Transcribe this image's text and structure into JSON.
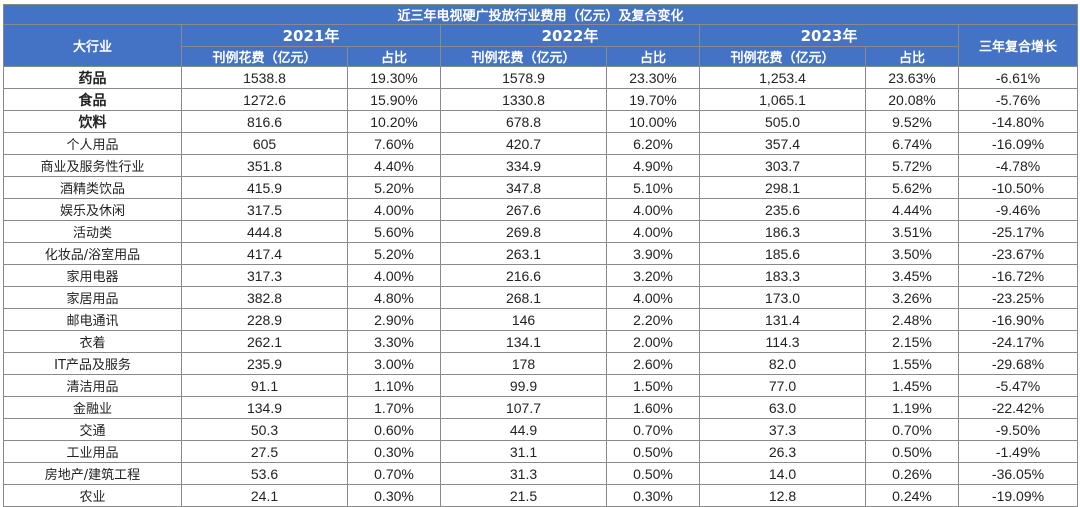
{
  "chart_data": {
    "type": "table",
    "title": "近三年电视硬广投放行业费用（亿元）及复合变化",
    "category_header": "大行业",
    "years": [
      "2021年",
      "2022年",
      "2023年"
    ],
    "spend_header": "刊例花费（亿元）",
    "share_header": "占比",
    "cagr_header": "三年复合增长",
    "rows": [
      {
        "industry": "药品",
        "y2021": "1538.8",
        "s2021": "19.30%",
        "y2022": "1578.9",
        "s2022": "23.30%",
        "y2023": "1,253.4",
        "s2023": "23.63%",
        "cagr": "-6.61%",
        "bold": true
      },
      {
        "industry": "食品",
        "y2021": "1272.6",
        "s2021": "15.90%",
        "y2022": "1330.8",
        "s2022": "19.70%",
        "y2023": "1,065.1",
        "s2023": "20.08%",
        "cagr": "-5.76%",
        "bold": true
      },
      {
        "industry": "饮料",
        "y2021": "816.6",
        "s2021": "10.20%",
        "y2022": "678.8",
        "s2022": "10.00%",
        "y2023": "505.0",
        "s2023": "9.52%",
        "cagr": "-14.80%",
        "bold": true
      },
      {
        "industry": "个人用品",
        "y2021": "605",
        "s2021": "7.60%",
        "y2022": "420.7",
        "s2022": "6.20%",
        "y2023": "357.4",
        "s2023": "6.74%",
        "cagr": "-16.09%"
      },
      {
        "industry": "商业及服务性行业",
        "y2021": "351.8",
        "s2021": "4.40%",
        "y2022": "334.9",
        "s2022": "4.90%",
        "y2023": "303.7",
        "s2023": "5.72%",
        "cagr": "-4.78%"
      },
      {
        "industry": "酒精类饮品",
        "y2021": "415.9",
        "s2021": "5.20%",
        "y2022": "347.8",
        "s2022": "5.10%",
        "y2023": "298.1",
        "s2023": "5.62%",
        "cagr": "-10.50%"
      },
      {
        "industry": "娱乐及休闲",
        "y2021": "317.5",
        "s2021": "4.00%",
        "y2022": "267.6",
        "s2022": "4.00%",
        "y2023": "235.6",
        "s2023": "4.44%",
        "cagr": "-9.46%"
      },
      {
        "industry": "活动类",
        "y2021": "444.8",
        "s2021": "5.60%",
        "y2022": "269.8",
        "s2022": "4.00%",
        "y2023": "186.3",
        "s2023": "3.51%",
        "cagr": "-25.17%"
      },
      {
        "industry": "化妆品/浴室用品",
        "y2021": "417.4",
        "s2021": "5.20%",
        "y2022": "263.1",
        "s2022": "3.90%",
        "y2023": "185.6",
        "s2023": "3.50%",
        "cagr": "-23.67%"
      },
      {
        "industry": "家用电器",
        "y2021": "317.3",
        "s2021": "4.00%",
        "y2022": "216.6",
        "s2022": "3.20%",
        "y2023": "183.3",
        "s2023": "3.45%",
        "cagr": "-16.72%"
      },
      {
        "industry": "家居用品",
        "y2021": "382.8",
        "s2021": "4.80%",
        "y2022": "268.1",
        "s2022": "4.00%",
        "y2023": "173.0",
        "s2023": "3.26%",
        "cagr": "-23.25%"
      },
      {
        "industry": "邮电通讯",
        "y2021": "228.9",
        "s2021": "2.90%",
        "y2022": "146",
        "s2022": "2.20%",
        "y2023": "131.4",
        "s2023": "2.48%",
        "cagr": "-16.90%"
      },
      {
        "industry": "衣着",
        "y2021": "262.1",
        "s2021": "3.30%",
        "y2022": "134.1",
        "s2022": "2.00%",
        "y2023": "114.3",
        "s2023": "2.15%",
        "cagr": "-24.17%"
      },
      {
        "industry": "IT产品及服务",
        "y2021": "235.9",
        "s2021": "3.00%",
        "y2022": "178",
        "s2022": "2.60%",
        "y2023": "82.0",
        "s2023": "1.55%",
        "cagr": "-29.68%"
      },
      {
        "industry": "清洁用品",
        "y2021": "91.1",
        "s2021": "1.10%",
        "y2022": "99.9",
        "s2022": "1.50%",
        "y2023": "77.0",
        "s2023": "1.45%",
        "cagr": "-5.47%"
      },
      {
        "industry": "金融业",
        "y2021": "134.9",
        "s2021": "1.70%",
        "y2022": "107.7",
        "s2022": "1.60%",
        "y2023": "63.0",
        "s2023": "1.19%",
        "cagr": "-22.42%"
      },
      {
        "industry": "交通",
        "y2021": "50.3",
        "s2021": "0.60%",
        "y2022": "44.9",
        "s2022": "0.70%",
        "y2023": "37.3",
        "s2023": "0.70%",
        "cagr": "-9.50%"
      },
      {
        "industry": "工业用品",
        "y2021": "27.5",
        "s2021": "0.30%",
        "y2022": "31.1",
        "s2022": "0.50%",
        "y2023": "26.3",
        "s2023": "0.50%",
        "cagr": "-1.49%"
      },
      {
        "industry": "房地产/建筑工程",
        "y2021": "53.6",
        "s2021": "0.70%",
        "y2022": "31.3",
        "s2022": "0.50%",
        "y2023": "14.0",
        "s2023": "0.26%",
        "cagr": "-36.05%"
      },
      {
        "industry": "农业",
        "y2021": "24.1",
        "s2021": "0.30%",
        "y2022": "21.5",
        "s2022": "0.30%",
        "y2023": "12.8",
        "s2023": "0.24%",
        "cagr": "-19.09%"
      }
    ]
  },
  "colors": {
    "header_bg": "#4472c4",
    "header_text": "#ffffff",
    "border": "#8a8a8a"
  }
}
